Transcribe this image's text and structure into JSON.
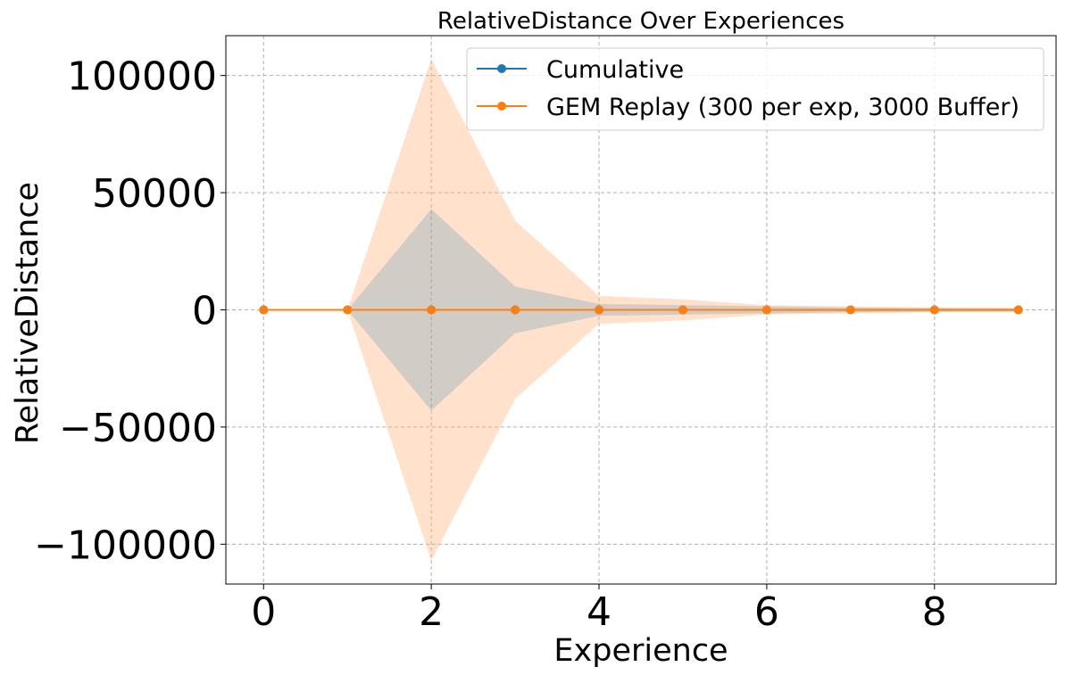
{
  "chart_data": {
    "type": "line",
    "title": "RelativeDistance Over Experiences",
    "xlabel": "Experience",
    "ylabel": "RelativeDistance",
    "xlim": [
      -0.45,
      9.45
    ],
    "ylim": [
      -117000,
      117000
    ],
    "x_ticks": [
      0,
      2,
      4,
      6,
      8
    ],
    "x_tick_labels": [
      "0",
      "2",
      "4",
      "6",
      "8"
    ],
    "y_ticks": [
      -100000,
      -50000,
      0,
      50000,
      100000
    ],
    "y_tick_labels": [
      "−100000",
      "−50000",
      "0",
      "50000",
      "100000"
    ],
    "grid": true,
    "legend_position": "top-right",
    "x": [
      0,
      1,
      2,
      3,
      4,
      5,
      6,
      7,
      8,
      9
    ],
    "series": [
      {
        "name": "Cumulative",
        "color": "#1f77b4",
        "fill_color": "#1f77b4",
        "values": [
          0,
          0,
          0,
          0,
          0,
          0,
          0,
          0,
          0,
          0
        ],
        "band_lower": [
          0,
          0,
          -43000,
          -10000,
          -2500,
          -2000,
          -1500,
          -1000,
          -800,
          -600
        ],
        "band_upper": [
          0,
          0,
          43000,
          10000,
          2500,
          2000,
          1500,
          1000,
          800,
          600
        ]
      },
      {
        "name": "GEM Replay (300 per exp, 3000 Buffer)",
        "color": "#ff7f0e",
        "fill_color": "#ffb07a",
        "values": [
          0,
          0,
          0,
          0,
          0,
          0,
          0,
          0,
          0,
          0
        ],
        "band_lower": [
          0,
          0,
          -107000,
          -38000,
          -6000,
          -4500,
          -2000,
          -1500,
          -1000,
          -1000
        ],
        "band_upper": [
          0,
          0,
          107000,
          38000,
          6000,
          4500,
          2000,
          1500,
          1000,
          1000
        ]
      }
    ]
  }
}
